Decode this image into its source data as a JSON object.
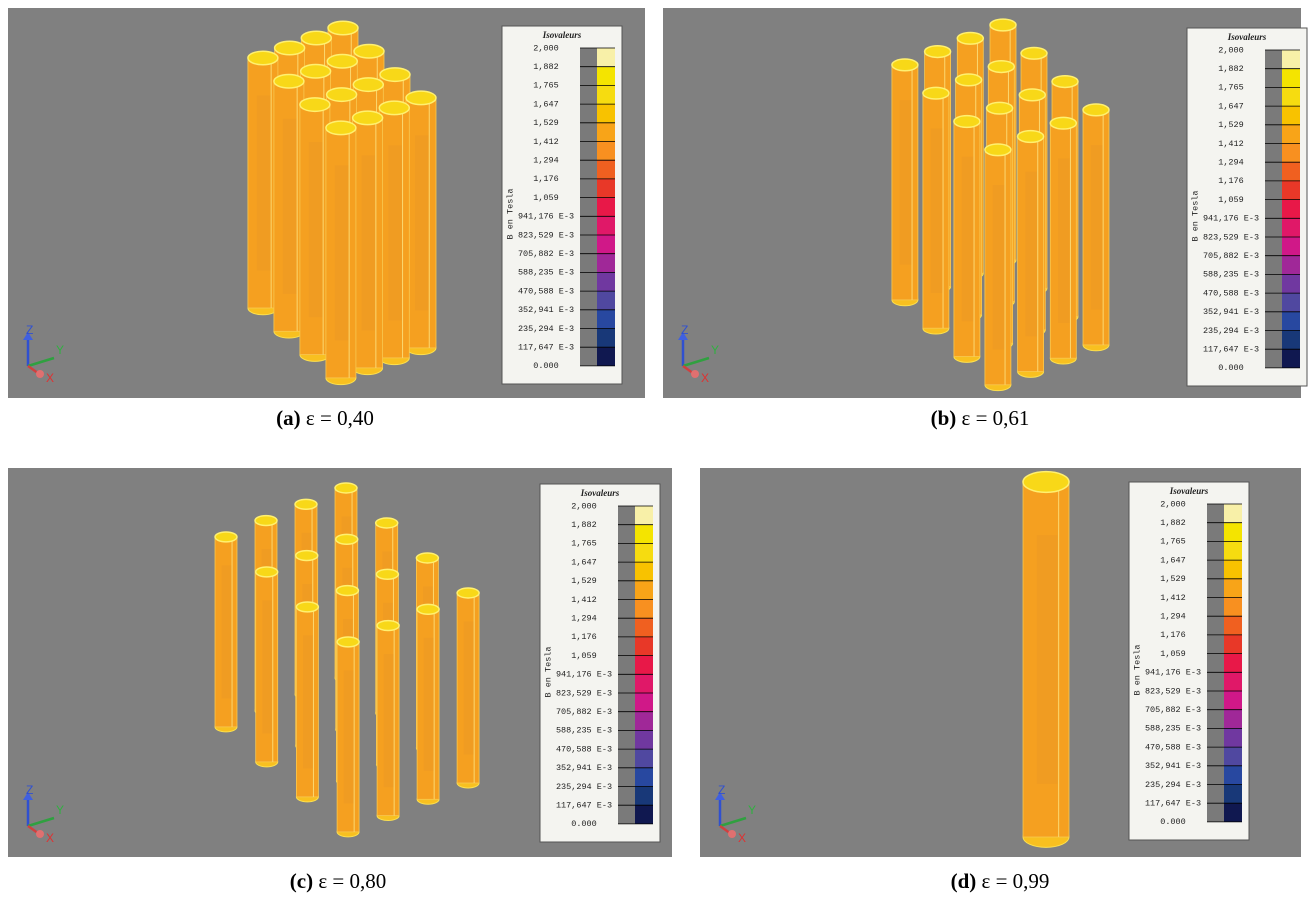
{
  "panels": [
    {
      "label": "(a)",
      "caption": "ε = 0,40"
    },
    {
      "label": "(b)",
      "caption": "ε = 0,61"
    },
    {
      "label": "(c)",
      "caption": "ε = 0,80"
    },
    {
      "label": "(d)",
      "caption": "ε = 0,99"
    }
  ],
  "legend": {
    "title": "Isovaleurs",
    "axis_label": "B en Tesla",
    "labels": [
      "2,000",
      "1,882",
      "1,765",
      "1,647",
      "1,529",
      "1,412",
      "1,294",
      "1,176",
      "1,059",
      "941,176 E-3",
      "823,529 E-3",
      "705,882 E-3",
      "588,235 E-3",
      "470,588 E-3",
      "352,941 E-3",
      "235,294 E-3",
      "117,647 E-3",
      "0.000"
    ]
  },
  "axes": {
    "z": "Z",
    "y": "Y",
    "x": "X"
  }
}
